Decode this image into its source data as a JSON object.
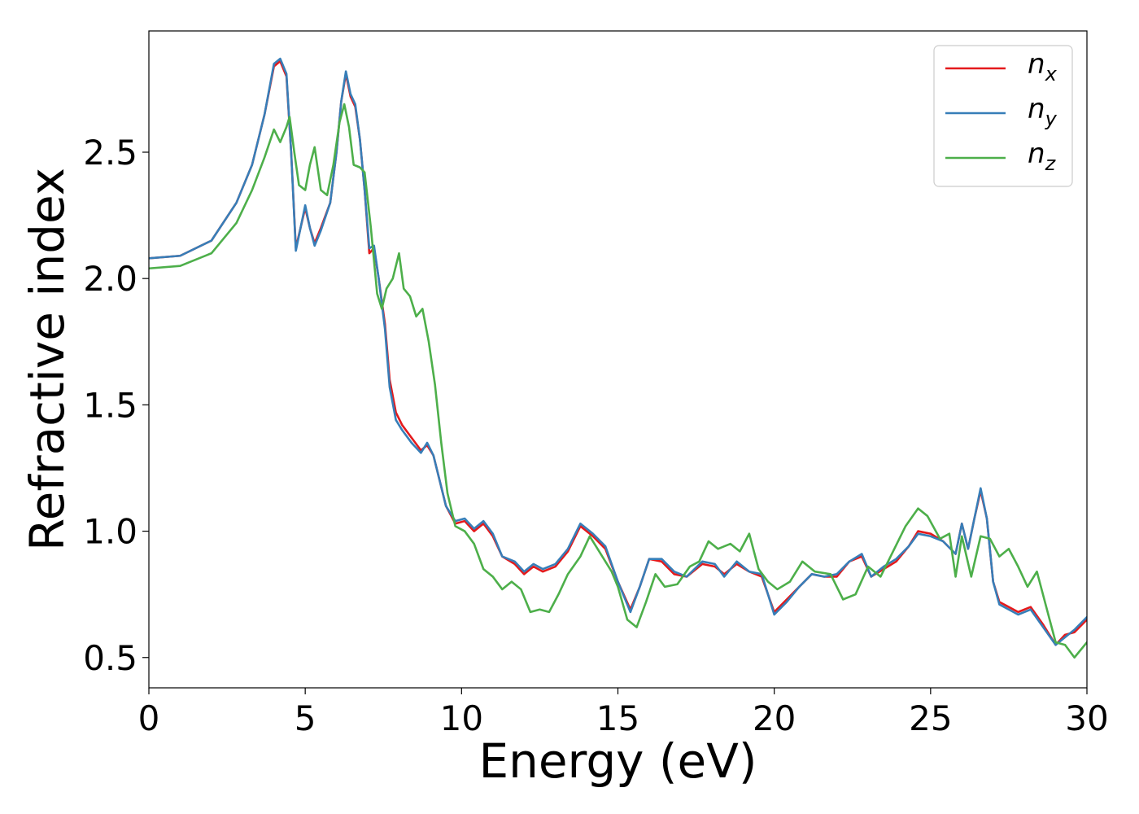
{
  "chart_data": {
    "type": "line",
    "xlabel": "Energy (eV)",
    "ylabel": "Refractive index",
    "xlim": [
      0,
      30
    ],
    "ylim": [
      0.38,
      2.98
    ],
    "xticks": [
      0,
      5,
      10,
      15,
      20,
      25,
      30
    ],
    "xtick_labels": [
      "0",
      "5",
      "10",
      "15",
      "20",
      "25",
      "30"
    ],
    "yticks": [
      0.5,
      1.0,
      1.5,
      2.0,
      2.5
    ],
    "ytick_labels": [
      "0.5",
      "1.0",
      "1.5",
      "2.0",
      "2.5"
    ],
    "grid": false,
    "legend_position": "top-right",
    "series": [
      {
        "name": "n_x",
        "legend_base": "n",
        "legend_sub": "x",
        "color": "#e41a1c",
        "points": [
          [
            0,
            2.08
          ],
          [
            1,
            2.09
          ],
          [
            2,
            2.15
          ],
          [
            2.8,
            2.3
          ],
          [
            3.3,
            2.45
          ],
          [
            3.7,
            2.65
          ],
          [
            4,
            2.84
          ],
          [
            4.2,
            2.86
          ],
          [
            4.4,
            2.8
          ],
          [
            4.55,
            2.5
          ],
          [
            4.7,
            2.12
          ],
          [
            4.85,
            2.2
          ],
          [
            5,
            2.28
          ],
          [
            5.15,
            2.2
          ],
          [
            5.3,
            2.14
          ],
          [
            5.5,
            2.2
          ],
          [
            5.8,
            2.3
          ],
          [
            6,
            2.5
          ],
          [
            6.15,
            2.7
          ],
          [
            6.3,
            2.81
          ],
          [
            6.45,
            2.72
          ],
          [
            6.6,
            2.68
          ],
          [
            6.75,
            2.55
          ],
          [
            6.9,
            2.35
          ],
          [
            7.05,
            2.1
          ],
          [
            7.2,
            2.12
          ],
          [
            7.35,
            2.0
          ],
          [
            7.55,
            1.82
          ],
          [
            7.7,
            1.6
          ],
          [
            7.9,
            1.47
          ],
          [
            8.1,
            1.42
          ],
          [
            8.4,
            1.37
          ],
          [
            8.7,
            1.32
          ],
          [
            8.9,
            1.34
          ],
          [
            9.1,
            1.3
          ],
          [
            9.3,
            1.2
          ],
          [
            9.5,
            1.1
          ],
          [
            9.8,
            1.03
          ],
          [
            10.1,
            1.04
          ],
          [
            10.4,
            1.0
          ],
          [
            10.7,
            1.03
          ],
          [
            11,
            0.98
          ],
          [
            11.3,
            0.9
          ],
          [
            11.7,
            0.87
          ],
          [
            12,
            0.83
          ],
          [
            12.3,
            0.86
          ],
          [
            12.6,
            0.84
          ],
          [
            13,
            0.86
          ],
          [
            13.4,
            0.92
          ],
          [
            13.8,
            1.02
          ],
          [
            14.2,
            0.98
          ],
          [
            14.6,
            0.93
          ],
          [
            15,
            0.8
          ],
          [
            15.4,
            0.69
          ],
          [
            15.7,
            0.78
          ],
          [
            16,
            0.89
          ],
          [
            16.4,
            0.88
          ],
          [
            16.8,
            0.83
          ],
          [
            17.2,
            0.82
          ],
          [
            17.7,
            0.87
          ],
          [
            18.1,
            0.86
          ],
          [
            18.4,
            0.83
          ],
          [
            18.8,
            0.87
          ],
          [
            19.2,
            0.84
          ],
          [
            19.6,
            0.82
          ],
          [
            20,
            0.68
          ],
          [
            20.4,
            0.73
          ],
          [
            20.8,
            0.78
          ],
          [
            21.2,
            0.83
          ],
          [
            21.6,
            0.82
          ],
          [
            22,
            0.82
          ],
          [
            22.4,
            0.88
          ],
          [
            22.8,
            0.9
          ],
          [
            23.1,
            0.82
          ],
          [
            23.5,
            0.85
          ],
          [
            23.9,
            0.88
          ],
          [
            24.3,
            0.94
          ],
          [
            24.6,
            1.0
          ],
          [
            25,
            0.99
          ],
          [
            25.4,
            0.96
          ],
          [
            25.8,
            0.91
          ],
          [
            26,
            1.03
          ],
          [
            26.2,
            0.93
          ],
          [
            26.4,
            1.05
          ],
          [
            26.6,
            1.16
          ],
          [
            26.8,
            1.05
          ],
          [
            27,
            0.8
          ],
          [
            27.2,
            0.72
          ],
          [
            27.5,
            0.7
          ],
          [
            27.8,
            0.68
          ],
          [
            28.2,
            0.7
          ],
          [
            28.6,
            0.63
          ],
          [
            29,
            0.55
          ],
          [
            29.3,
            0.59
          ],
          [
            29.6,
            0.6
          ],
          [
            30,
            0.65
          ]
        ]
      },
      {
        "name": "n_y",
        "legend_base": "n",
        "legend_sub": "y",
        "color": "#377eb8",
        "points": [
          [
            0,
            2.08
          ],
          [
            1,
            2.09
          ],
          [
            2,
            2.15
          ],
          [
            2.8,
            2.3
          ],
          [
            3.3,
            2.45
          ],
          [
            3.7,
            2.65
          ],
          [
            4,
            2.85
          ],
          [
            4.2,
            2.87
          ],
          [
            4.4,
            2.81
          ],
          [
            4.55,
            2.5
          ],
          [
            4.7,
            2.11
          ],
          [
            4.85,
            2.2
          ],
          [
            5,
            2.29
          ],
          [
            5.15,
            2.2
          ],
          [
            5.3,
            2.13
          ],
          [
            5.5,
            2.19
          ],
          [
            5.8,
            2.3
          ],
          [
            6,
            2.5
          ],
          [
            6.15,
            2.7
          ],
          [
            6.3,
            2.82
          ],
          [
            6.45,
            2.73
          ],
          [
            6.6,
            2.69
          ],
          [
            6.75,
            2.55
          ],
          [
            6.9,
            2.35
          ],
          [
            7.05,
            2.12
          ],
          [
            7.2,
            2.13
          ],
          [
            7.35,
            2.0
          ],
          [
            7.55,
            1.8
          ],
          [
            7.7,
            1.57
          ],
          [
            7.9,
            1.44
          ],
          [
            8.1,
            1.4
          ],
          [
            8.4,
            1.35
          ],
          [
            8.7,
            1.31
          ],
          [
            8.9,
            1.35
          ],
          [
            9.1,
            1.3
          ],
          [
            9.3,
            1.2
          ],
          [
            9.5,
            1.1
          ],
          [
            9.8,
            1.04
          ],
          [
            10.1,
            1.05
          ],
          [
            10.4,
            1.01
          ],
          [
            10.7,
            1.04
          ],
          [
            11,
            0.99
          ],
          [
            11.3,
            0.9
          ],
          [
            11.7,
            0.88
          ],
          [
            12,
            0.84
          ],
          [
            12.3,
            0.87
          ],
          [
            12.6,
            0.85
          ],
          [
            13,
            0.87
          ],
          [
            13.4,
            0.93
          ],
          [
            13.8,
            1.03
          ],
          [
            14.2,
            0.99
          ],
          [
            14.6,
            0.94
          ],
          [
            15,
            0.8
          ],
          [
            15.4,
            0.68
          ],
          [
            15.7,
            0.78
          ],
          [
            16,
            0.89
          ],
          [
            16.4,
            0.89
          ],
          [
            16.8,
            0.84
          ],
          [
            17.2,
            0.82
          ],
          [
            17.7,
            0.88
          ],
          [
            18.1,
            0.87
          ],
          [
            18.4,
            0.82
          ],
          [
            18.8,
            0.88
          ],
          [
            19.2,
            0.84
          ],
          [
            19.6,
            0.83
          ],
          [
            20,
            0.67
          ],
          [
            20.4,
            0.72
          ],
          [
            20.8,
            0.78
          ],
          [
            21.2,
            0.83
          ],
          [
            21.6,
            0.82
          ],
          [
            22,
            0.83
          ],
          [
            22.4,
            0.88
          ],
          [
            22.8,
            0.91
          ],
          [
            23.1,
            0.82
          ],
          [
            23.5,
            0.86
          ],
          [
            23.9,
            0.89
          ],
          [
            24.3,
            0.94
          ],
          [
            24.6,
            0.99
          ],
          [
            25,
            0.98
          ],
          [
            25.4,
            0.96
          ],
          [
            25.8,
            0.91
          ],
          [
            26,
            1.03
          ],
          [
            26.2,
            0.93
          ],
          [
            26.4,
            1.05
          ],
          [
            26.6,
            1.17
          ],
          [
            26.8,
            1.05
          ],
          [
            27,
            0.8
          ],
          [
            27.2,
            0.71
          ],
          [
            27.5,
            0.69
          ],
          [
            27.8,
            0.67
          ],
          [
            28.2,
            0.69
          ],
          [
            28.6,
            0.62
          ],
          [
            29,
            0.55
          ],
          [
            29.3,
            0.58
          ],
          [
            29.6,
            0.61
          ],
          [
            30,
            0.66
          ]
        ]
      },
      {
        "name": "n_z",
        "legend_base": "n",
        "legend_sub": "z",
        "color": "#4daf4a",
        "points": [
          [
            0,
            2.04
          ],
          [
            1,
            2.05
          ],
          [
            2,
            2.1
          ],
          [
            2.8,
            2.22
          ],
          [
            3.3,
            2.35
          ],
          [
            3.7,
            2.48
          ],
          [
            4,
            2.59
          ],
          [
            4.2,
            2.54
          ],
          [
            4.4,
            2.6
          ],
          [
            4.5,
            2.64
          ],
          [
            4.65,
            2.5
          ],
          [
            4.8,
            2.37
          ],
          [
            5,
            2.35
          ],
          [
            5.15,
            2.45
          ],
          [
            5.3,
            2.52
          ],
          [
            5.5,
            2.35
          ],
          [
            5.7,
            2.33
          ],
          [
            5.9,
            2.45
          ],
          [
            6.1,
            2.62
          ],
          [
            6.25,
            2.69
          ],
          [
            6.4,
            2.6
          ],
          [
            6.55,
            2.45
          ],
          [
            6.75,
            2.44
          ],
          [
            6.9,
            2.42
          ],
          [
            7.1,
            2.2
          ],
          [
            7.3,
            1.94
          ],
          [
            7.45,
            1.88
          ],
          [
            7.6,
            1.96
          ],
          [
            7.8,
            2.0
          ],
          [
            8,
            2.1
          ],
          [
            8.15,
            1.96
          ],
          [
            8.35,
            1.93
          ],
          [
            8.55,
            1.85
          ],
          [
            8.75,
            1.88
          ],
          [
            8.95,
            1.75
          ],
          [
            9.15,
            1.58
          ],
          [
            9.35,
            1.35
          ],
          [
            9.55,
            1.15
          ],
          [
            9.8,
            1.02
          ],
          [
            10.1,
            1.0
          ],
          [
            10.4,
            0.95
          ],
          [
            10.7,
            0.85
          ],
          [
            11,
            0.82
          ],
          [
            11.3,
            0.77
          ],
          [
            11.6,
            0.8
          ],
          [
            11.9,
            0.77
          ],
          [
            12.2,
            0.68
          ],
          [
            12.5,
            0.69
          ],
          [
            12.8,
            0.68
          ],
          [
            13.1,
            0.75
          ],
          [
            13.4,
            0.83
          ],
          [
            13.8,
            0.9
          ],
          [
            14.1,
            0.98
          ],
          [
            14.5,
            0.9
          ],
          [
            14.8,
            0.84
          ],
          [
            15,
            0.78
          ],
          [
            15.3,
            0.65
          ],
          [
            15.6,
            0.62
          ],
          [
            15.9,
            0.72
          ],
          [
            16.2,
            0.83
          ],
          [
            16.5,
            0.78
          ],
          [
            16.9,
            0.79
          ],
          [
            17.3,
            0.86
          ],
          [
            17.6,
            0.88
          ],
          [
            17.9,
            0.96
          ],
          [
            18.2,
            0.93
          ],
          [
            18.6,
            0.95
          ],
          [
            18.9,
            0.92
          ],
          [
            19.2,
            0.99
          ],
          [
            19.5,
            0.85
          ],
          [
            19.8,
            0.8
          ],
          [
            20.1,
            0.77
          ],
          [
            20.5,
            0.8
          ],
          [
            20.9,
            0.88
          ],
          [
            21.3,
            0.84
          ],
          [
            21.8,
            0.83
          ],
          [
            22.2,
            0.73
          ],
          [
            22.6,
            0.75
          ],
          [
            23,
            0.86
          ],
          [
            23.4,
            0.82
          ],
          [
            23.8,
            0.92
          ],
          [
            24.2,
            1.02
          ],
          [
            24.6,
            1.09
          ],
          [
            24.9,
            1.06
          ],
          [
            25.3,
            0.97
          ],
          [
            25.6,
            0.99
          ],
          [
            25.8,
            0.82
          ],
          [
            26,
            0.98
          ],
          [
            26.3,
            0.82
          ],
          [
            26.6,
            0.98
          ],
          [
            26.9,
            0.97
          ],
          [
            27.2,
            0.9
          ],
          [
            27.5,
            0.93
          ],
          [
            27.8,
            0.86
          ],
          [
            28.1,
            0.78
          ],
          [
            28.4,
            0.84
          ],
          [
            28.7,
            0.7
          ],
          [
            29,
            0.56
          ],
          [
            29.3,
            0.55
          ],
          [
            29.6,
            0.5
          ],
          [
            30,
            0.56
          ]
        ]
      }
    ]
  }
}
